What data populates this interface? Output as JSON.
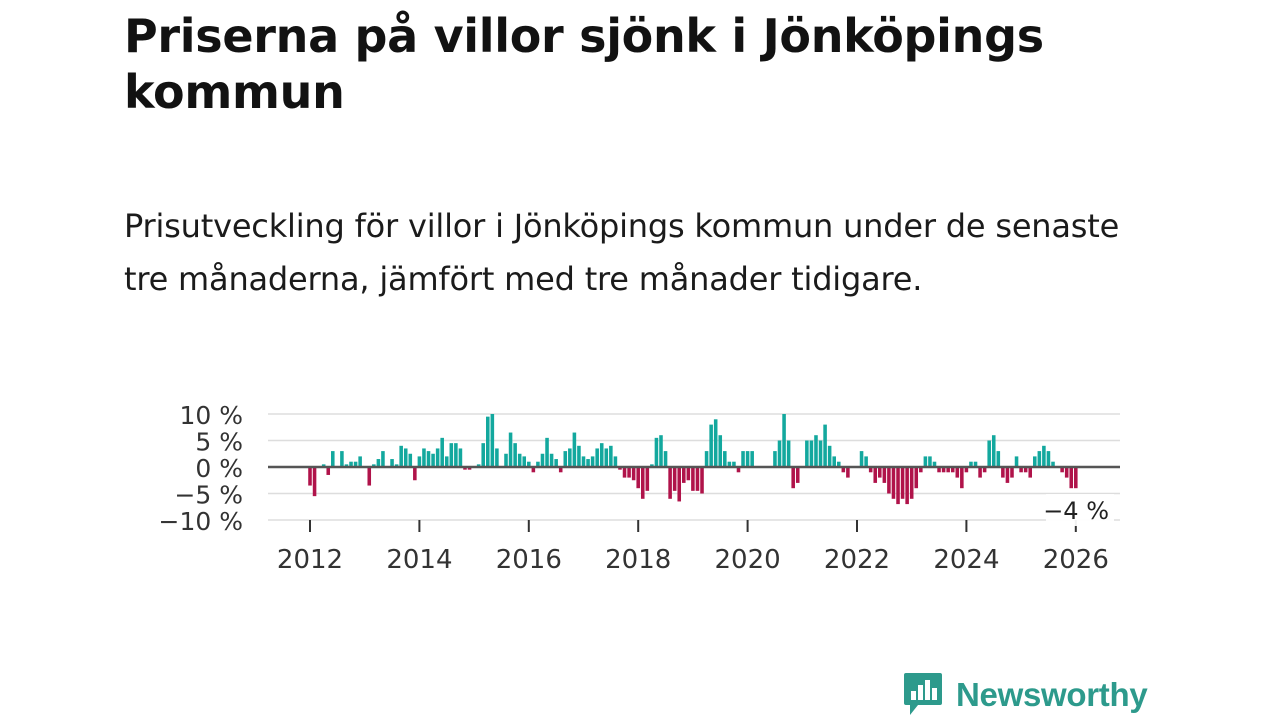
{
  "header": {
    "title": "Priserna på villor sjönk i Jönköpings kommun",
    "subtitle": "Prisutveckling för villor i Jönköpings kommun under de senaste tre månaderna, jämfört med tre månader tidigare."
  },
  "brand": {
    "name": "Newsworthy",
    "icon": "newsworthy-logo-icon",
    "color": "#2d9a8c"
  },
  "colors": {
    "positive": "#13a89e",
    "negative": "#b0134a",
    "grid": "#dddddd",
    "zero_line": "#555555"
  },
  "chart_data": {
    "type": "bar",
    "title": "",
    "xlabel": "",
    "ylabel": "",
    "unit": "%",
    "ylim": [
      -10,
      10
    ],
    "yticks": [
      10,
      5,
      0,
      -5,
      -10
    ],
    "ytick_labels": [
      "10 %",
      "5 %",
      "0 %",
      "−5 %",
      "−10 %"
    ],
    "xlim": [
      "2011-09",
      "2026-12"
    ],
    "xticks": [
      "2012",
      "2014",
      "2016",
      "2018",
      "2020",
      "2022",
      "2024",
      "2026"
    ],
    "grid": true,
    "legend": "none",
    "start_month": "2012-01",
    "values": [
      -3.5,
      -5.5,
      0,
      0.5,
      -1.5,
      3,
      0,
      3,
      0.5,
      1,
      1,
      2,
      0,
      -3.5,
      0.5,
      1.5,
      3,
      0,
      1.5,
      0.5,
      4,
      3.5,
      2.5,
      -2.5,
      2,
      3.5,
      3,
      2.5,
      3.5,
      5.5,
      2,
      4.5,
      4.5,
      3.5,
      -0.5,
      -0.5,
      0,
      0.5,
      4.5,
      9.5,
      10,
      3.5,
      0,
      2.5,
      6.5,
      4.5,
      2.5,
      2,
      1,
      -1,
      1,
      2.5,
      5.5,
      2.5,
      1.5,
      -1,
      3,
      3.5,
      6.5,
      4,
      2,
      1.5,
      2,
      3.5,
      4.5,
      3.5,
      4,
      2,
      -0.5,
      -2,
      -2,
      -2.5,
      -4,
      -6,
      -4.5,
      0.5,
      5.5,
      6,
      3,
      -6,
      -4.5,
      -6.5,
      -3,
      -2.5,
      -4.5,
      -4.5,
      -5,
      3,
      8,
      9,
      6,
      3,
      1,
      1,
      -1,
      3,
      3,
      3,
      0,
      0,
      0,
      0,
      3,
      5,
      10,
      5,
      -4,
      -3,
      0,
      5,
      5,
      6,
      5,
      8,
      4,
      2,
      1,
      -1,
      -2,
      0,
      0,
      3,
      2,
      -1,
      -3,
      -2,
      -3,
      -5,
      -6,
      -7,
      -6,
      -7,
      -6,
      -4,
      -1,
      2,
      2,
      1,
      -1,
      -1,
      -1,
      -1,
      -2,
      -4,
      -1,
      1,
      1,
      -2,
      -1,
      5,
      6,
      3,
      -2,
      -3,
      -2,
      2,
      -1,
      -1,
      -2,
      2,
      3,
      4,
      3,
      1,
      0,
      -1,
      -2,
      -4,
      -4
    ],
    "annotations": [
      {
        "x": "2026-01",
        "label": "−4 %"
      }
    ]
  }
}
